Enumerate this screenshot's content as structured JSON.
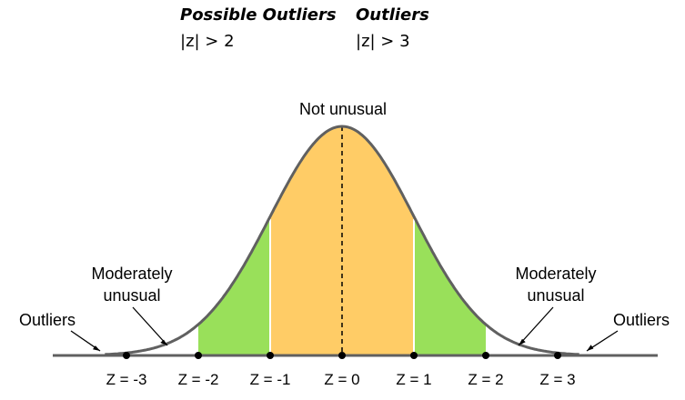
{
  "header": {
    "possible_outliers": {
      "title": "Possible Outliers",
      "rule": "|z| > 2"
    },
    "outliers": {
      "title": "Outliers",
      "rule": "|z| > 3"
    }
  },
  "labels": {
    "center": "Not unusual",
    "moderate_left": [
      "Moderately",
      "unusual"
    ],
    "moderate_right": [
      "Moderately",
      "unusual"
    ],
    "outliers_left": "Outliers",
    "outliers_right": "Outliers"
  },
  "z_ticks": [
    {
      "z": -3,
      "label": "Z = -3"
    },
    {
      "z": -2,
      "label": "Z = -2"
    },
    {
      "z": -1,
      "label": "Z = -1"
    },
    {
      "z": 0,
      "label": "Z = 0"
    },
    {
      "z": 1,
      "label": "Z = 1"
    },
    {
      "z": 2,
      "label": "Z = 2"
    },
    {
      "z": 3,
      "label": "Z = 3"
    }
  ],
  "colors": {
    "center_fill": "#FFCC66",
    "moderate_fill": "#99E05A",
    "curve": "#606060",
    "axis": "#606060"
  }
}
